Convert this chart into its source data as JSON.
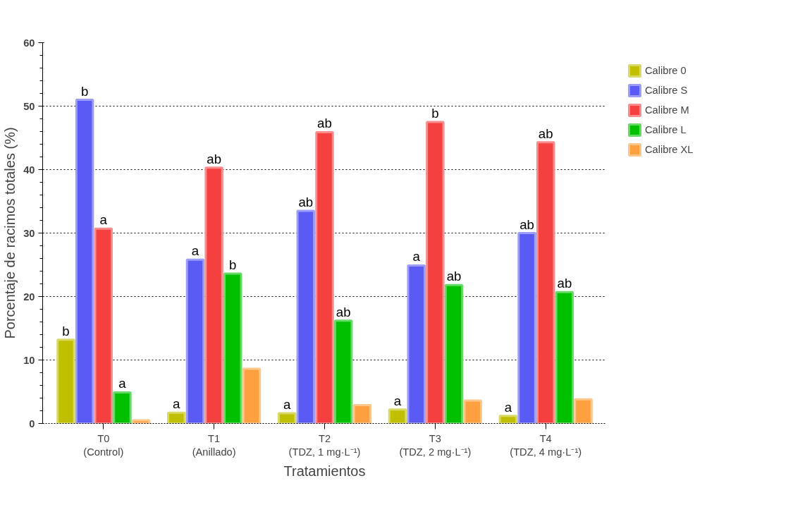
{
  "chart_data": {
    "type": "bar",
    "xlabel": "Tratamientos",
    "ylabel": "Porcentaje de racimos totales (%)",
    "categories": [
      "T0\n(Control)",
      "T1\n(Anillado)",
      "T2\n(TDZ, 1 mg·L⁻¹)",
      "T3\n(TDZ, 2 mg·L⁻¹)",
      "T4\n(TDZ, 4 mg·L⁻¹)"
    ],
    "series": [
      {
        "name": "Calibre 0",
        "color": "#c0c000",
        "values": [
          13.2,
          1.7,
          1.6,
          2.2,
          1.2
        ],
        "value_labels": [
          "b",
          "a",
          "a",
          "a",
          "a"
        ]
      },
      {
        "name": "Calibre S",
        "color": "#5a5af5",
        "values": [
          51.0,
          25.8,
          33.5,
          24.9,
          30.0
        ],
        "value_labels": [
          "b",
          "a",
          "ab",
          "a",
          "ab"
        ]
      },
      {
        "name": "Calibre M",
        "color": "#f54040",
        "values": [
          30.7,
          40.3,
          45.9,
          47.5,
          44.3
        ],
        "value_labels": [
          "a",
          "ab",
          "ab",
          "b",
          "ab"
        ]
      },
      {
        "name": "Calibre L",
        "color": "#00c000",
        "values": [
          4.9,
          23.6,
          16.2,
          21.8,
          20.7
        ],
        "value_labels": [
          "a",
          "b",
          "ab",
          "ab",
          "ab"
        ]
      },
      {
        "name": "Calibre XL",
        "color": "#ffa040",
        "values": [
          0.5,
          8.6,
          2.9,
          3.6,
          3.8
        ],
        "value_labels": [
          null,
          null,
          null,
          null,
          null
        ]
      }
    ],
    "ylim": [
      0,
      60
    ],
    "yticks": [
      0,
      10,
      20,
      30,
      40,
      50,
      60
    ],
    "grid": "y",
    "legend": "right"
  }
}
